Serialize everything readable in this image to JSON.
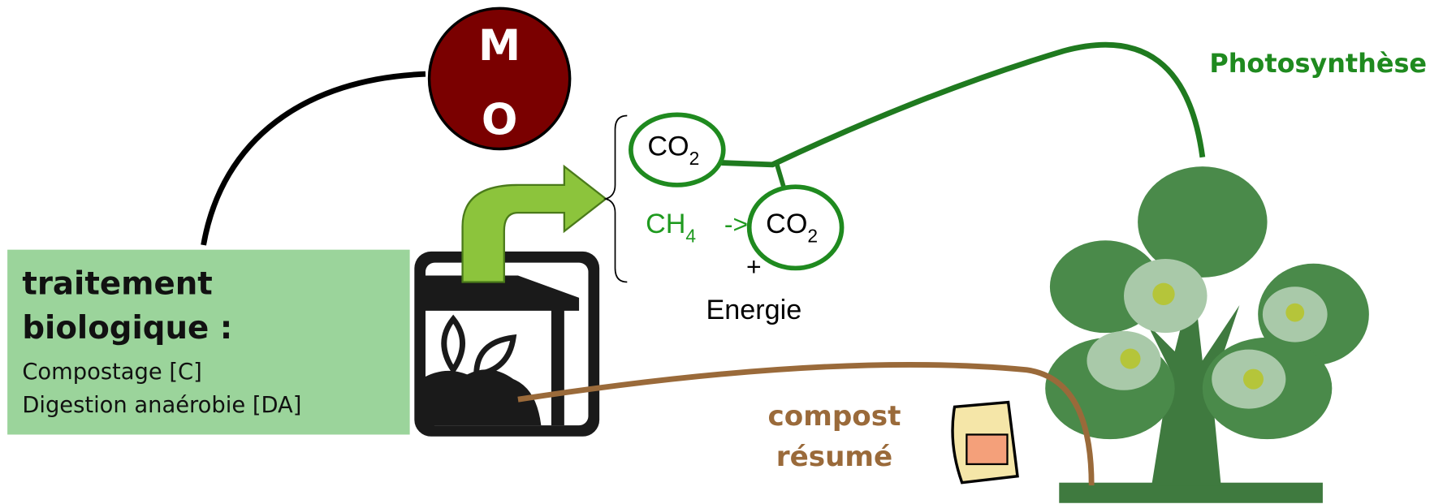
{
  "mo": {
    "letter1": "M",
    "letter2": "O"
  },
  "treatment": {
    "title1": "traitement",
    "title2": "biologique :",
    "item1": "Compostage [C]",
    "item2": "Digestion anaérobie [DA]"
  },
  "gases": {
    "co2_top": {
      "base": "CO",
      "sub": "2"
    },
    "ch4": {
      "base": "CH",
      "sub": "4"
    },
    "arrow": "->",
    "co2_bottom": {
      "base": "CO",
      "sub": "2"
    },
    "plus": "+",
    "energy": "Energie"
  },
  "photosynthesis": "Photosynthèse",
  "compost": {
    "line1": "compost",
    "line2": "résumé"
  }
}
